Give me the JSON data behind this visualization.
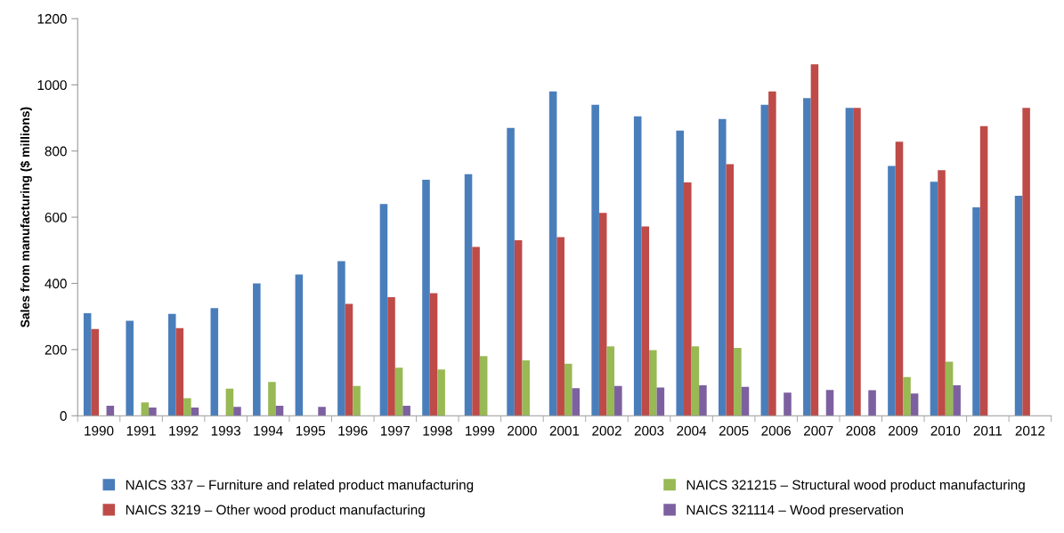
{
  "chart_data": {
    "type": "bar",
    "ylabel": "Sales from manufacturing ($ millions)",
    "categories": [
      "1990",
      "1991",
      "1992",
      "1993",
      "1994",
      "1995",
      "1996",
      "1997",
      "1998",
      "1999",
      "2000",
      "2001",
      "2002",
      "2003",
      "2004",
      "2005",
      "2006",
      "2007",
      "2008",
      "2009",
      "2010",
      "2011",
      "2012"
    ],
    "series": [
      {
        "name": "NAICS 337 – Furniture and related product manufacturing",
        "color": "#4a7ebb",
        "values": [
          310,
          287,
          308,
          325,
          400,
          427,
          467,
          640,
          713,
          730,
          870,
          980,
          940,
          905,
          862,
          897,
          940,
          960,
          930,
          755,
          707,
          630,
          665
        ]
      },
      {
        "name": "NAICS 3219 – Other wood product manufacturing",
        "color": "#be4b48",
        "values": [
          262,
          null,
          265,
          null,
          null,
          null,
          338,
          358,
          370,
          510,
          530,
          540,
          613,
          572,
          705,
          760,
          980,
          1062,
          930,
          828,
          742,
          875,
          930
        ]
      },
      {
        "name": "NAICS 321215 – Structural wood product manufacturing",
        "color": "#98b954",
        "values": [
          null,
          40,
          53,
          82,
          102,
          null,
          90,
          145,
          140,
          180,
          167,
          157,
          210,
          198,
          210,
          205,
          null,
          null,
          null,
          117,
          163,
          null,
          null
        ]
      },
      {
        "name": "NAICS 321114 – Wood preservation",
        "color": "#7d60a0",
        "values": [
          30,
          25,
          25,
          27,
          30,
          27,
          null,
          30,
          null,
          null,
          null,
          83,
          90,
          85,
          92,
          87,
          70,
          78,
          77,
          67,
          92,
          null,
          null
        ]
      }
    ],
    "ylim": [
      0,
      1200
    ],
    "yticks": [
      0,
      200,
      400,
      600,
      800,
      1000,
      1200
    ],
    "grid": false,
    "legend": "bottom"
  }
}
